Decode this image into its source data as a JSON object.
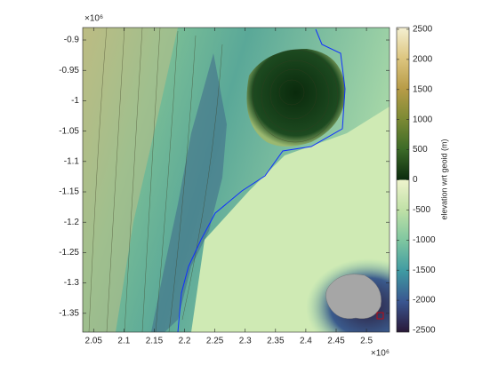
{
  "chart_data": {
    "type": "map",
    "x_multiplier": "×10⁶",
    "y_multiplier": "×10⁶",
    "xlim": [
      2032000,
      2538000
    ],
    "ylim": [
      -1381000,
      -879500
    ],
    "xticks": [
      {
        "value": 2050000,
        "label": "2.05"
      },
      {
        "value": 2100000,
        "label": "2.1"
      },
      {
        "value": 2150000,
        "label": "2.15"
      },
      {
        "value": 2200000,
        "label": "2.2"
      },
      {
        "value": 2250000,
        "label": "2.25"
      },
      {
        "value": 2300000,
        "label": "2.3"
      },
      {
        "value": 2350000,
        "label": "2.35"
      },
      {
        "value": 2400000,
        "label": "2.4"
      },
      {
        "value": 2450000,
        "label": "2.45"
      },
      {
        "value": 2500000,
        "label": "2.5"
      }
    ],
    "yticks": [
      {
        "value": -900000,
        "label": "-0.9"
      },
      {
        "value": -950000,
        "label": "-0.95"
      },
      {
        "value": -1000000,
        "label": "-1"
      },
      {
        "value": -1050000,
        "label": "-1.05"
      },
      {
        "value": -1100000,
        "label": "-1.1"
      },
      {
        "value": -1150000,
        "label": "-1.15"
      },
      {
        "value": -1200000,
        "label": "-1.2"
      },
      {
        "value": -1250000,
        "label": "-1.25"
      },
      {
        "value": -1300000,
        "label": "-1.3"
      },
      {
        "value": -1350000,
        "label": "-1.35"
      }
    ],
    "colorbar": {
      "label": "elevation wrt geoid (m)",
      "lim": [
        -2500,
        2500
      ],
      "ticks": [
        -2500,
        -2000,
        -1500,
        -1000,
        -500,
        0,
        500,
        1000,
        1500,
        2000,
        2500
      ]
    }
  }
}
